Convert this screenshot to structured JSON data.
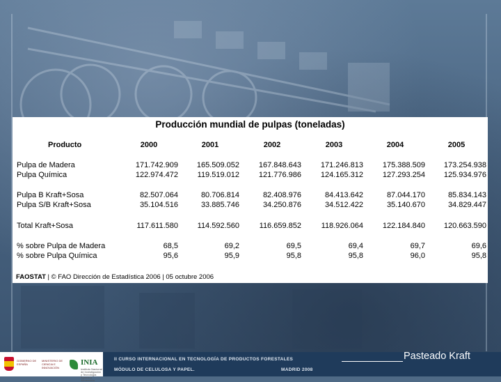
{
  "table": {
    "title": "Producción mundial de pulpas (toneladas)",
    "header": {
      "label": "Producto",
      "years": [
        "2000",
        "2001",
        "2002",
        "2003",
        "2004",
        "2005"
      ]
    },
    "rows": [
      {
        "label": "Pulpa de Madera",
        "values": [
          "171.742.909",
          "165.509.052",
          "167.848.643",
          "171.246.813",
          "175.388.509",
          "173.254.938"
        ]
      },
      {
        "label": "Pulpa Química",
        "values": [
          "122.974.472",
          "119.519.012",
          "121.776.986",
          "124.165.312",
          "127.293.254",
          "125.934.976"
        ]
      },
      {
        "label": "Pulpa B Kraft+Sosa",
        "values": [
          "82.507.064",
          "80.706.814",
          "82.408.976",
          "84.413.642",
          "87.044.170",
          "85.834.143"
        ]
      },
      {
        "label": "Pulpa S/B Kraft+Sosa",
        "values": [
          "35.104.516",
          "33.885.746",
          "34.250.876",
          "34.512.422",
          "35.140.670",
          "34.829.447"
        ]
      },
      {
        "label": "Total Kraft+Sosa",
        "values": [
          "117.611.580",
          "114.592.560",
          "116.659.852",
          "118.926.064",
          "122.184.840",
          "120.663.590"
        ]
      },
      {
        "label": "% sobre Pulpa de Madera",
        "values": [
          "68,5",
          "69,2",
          "69,5",
          "69,4",
          "69,7",
          "69,6"
        ]
      },
      {
        "label": "% sobre Pulpa Química",
        "values": [
          "95,6",
          "95,9",
          "95,8",
          "95,8",
          "96,0",
          "95,8"
        ]
      }
    ],
    "source_bold": "FAOSTAT",
    "source_rest": " | © FAO Dirección de Estadística 2006 | 05 octubre 2006"
  },
  "footer": {
    "gov_left": "GOBIERNO DE ESPAÑA",
    "gov_right": "MINISTERIO DE CIENCIA E INNOVACIÓN",
    "inia_name": "INIA",
    "inia_sub": "Instituto Nacional de Investigación y Tecnología Agraria y Alimentaria",
    "course_title": "II CURSO INTERNACIONAL EN TECNOLOGÍA DE PRODUCTOS FORESTALES",
    "course_module": "MÓDULO DE CELULOSA Y PAPEL.",
    "course_place": "MADRID 2008"
  },
  "caption": "Pasteado Kraft"
}
